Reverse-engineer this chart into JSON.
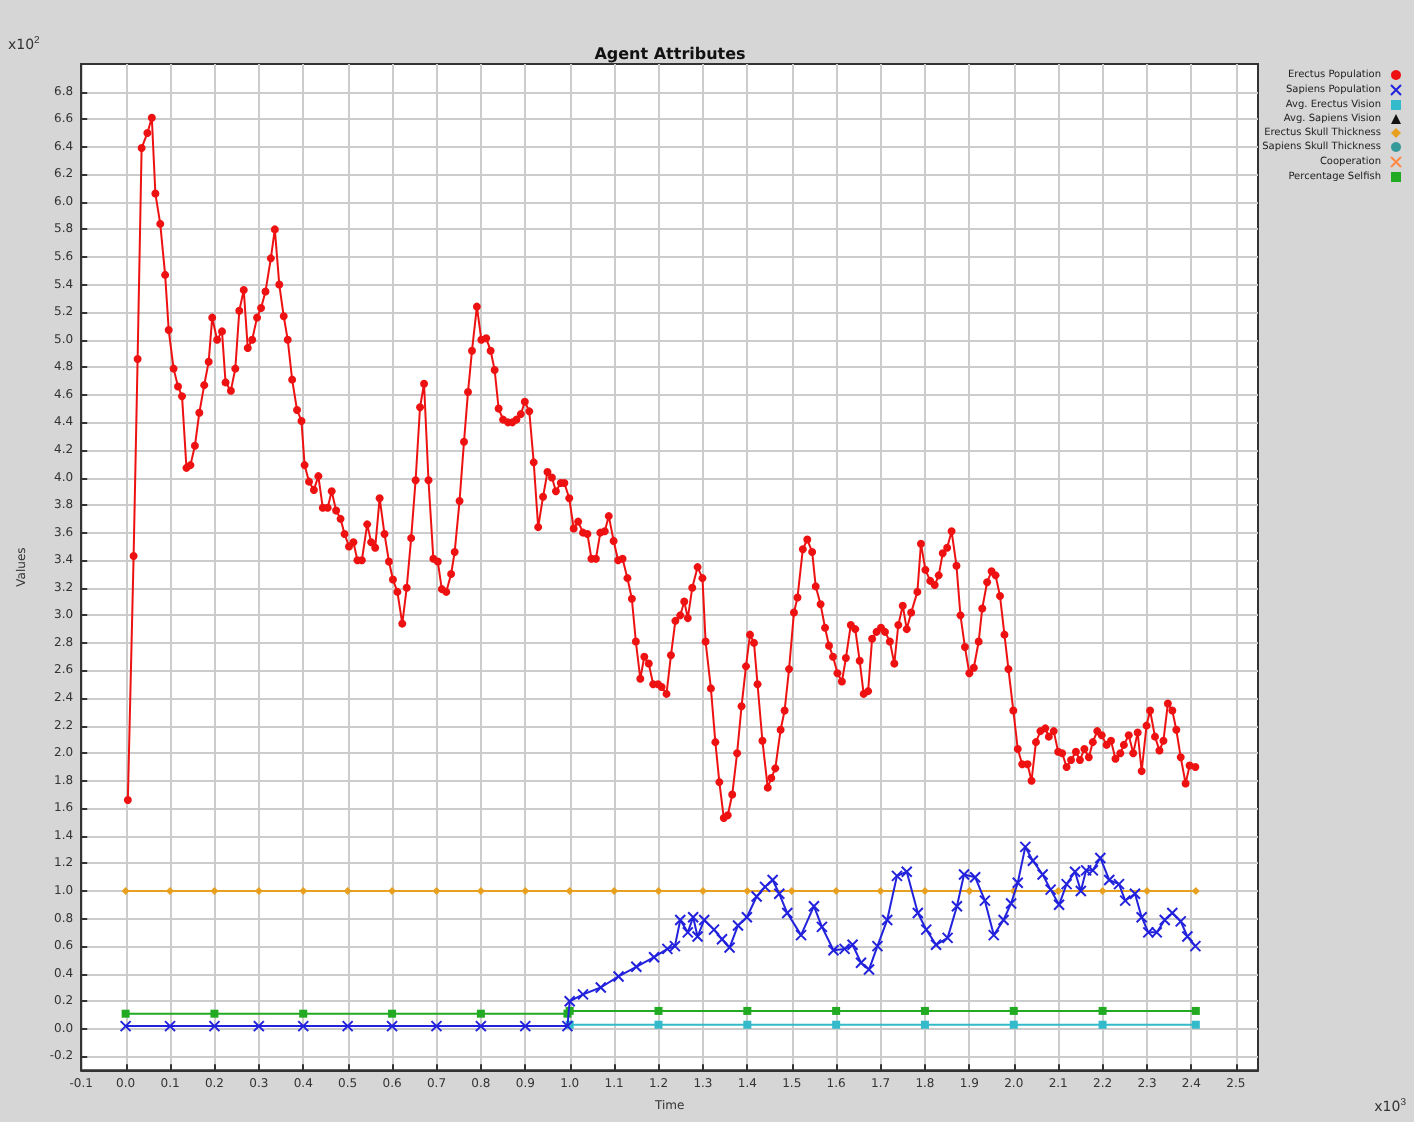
{
  "chart_data": {
    "type": "line",
    "title": "Agent Attributes",
    "xlabel": "Time",
    "ylabel": "Values",
    "annotations": [
      "x10$^{2}$",
      "x10$^{3}$"
    ],
    "xlim": [
      -0.1,
      2.55
    ],
    "xticks": [
      -0.1,
      {
        "value": 0,
        "label": "0.0"
      },
      0.1,
      0.2,
      0.3,
      0.4,
      0.5,
      0.6,
      0.7,
      0.8,
      0.9,
      {
        "value": 1,
        "label": "1.0"
      },
      1.1,
      1.2,
      1.3,
      1.4,
      1.5,
      1.6,
      1.7,
      1.8,
      1.9,
      {
        "value": 2,
        "label": "2.0"
      },
      2.1,
      2.2,
      2.3,
      2.4,
      2.5
    ],
    "ylim": [
      -0.3,
      7.0
    ],
    "yticks": [
      -0.2,
      {
        "value": 0,
        "label": "0.0"
      },
      0.2,
      0.4,
      0.6,
      0.8,
      {
        "value": 1,
        "label": "1.0"
      },
      1.2,
      1.4,
      1.6,
      1.8,
      {
        "value": 2,
        "label": "2.0"
      },
      2.2,
      2.4,
      2.6,
      2.8,
      {
        "value": 3,
        "label": "3.0"
      },
      3.2,
      3.4,
      3.6,
      3.8,
      {
        "value": 4,
        "label": "4.0"
      },
      4.2,
      4.4,
      4.6,
      4.8,
      {
        "value": 5,
        "label": "5.0"
      },
      5.2,
      5.4,
      5.6,
      5.8,
      {
        "value": 6,
        "label": "6.0"
      },
      6.2,
      6.4,
      6.6,
      6.8
    ],
    "grid": true,
    "legend": "top right",
    "series": [
      {
        "name": "Erectus Population",
        "color": "#ee1111",
        "marker": "circle",
        "x": [
          0.005,
          0.018,
          0.027,
          0.036,
          0.049,
          0.059,
          0.067,
          0.078,
          0.089,
          0.097,
          0.108,
          0.118,
          0.127,
          0.137,
          0.146,
          0.156,
          0.166,
          0.177,
          0.187,
          0.195,
          0.206,
          0.217,
          0.225,
          0.237,
          0.247,
          0.256,
          0.266,
          0.275,
          0.285,
          0.296,
          0.305,
          0.315,
          0.327,
          0.336,
          0.346,
          0.356,
          0.365,
          0.375,
          0.386,
          0.396,
          0.403,
          0.413,
          0.424,
          0.434,
          0.444,
          0.455,
          0.464,
          0.474,
          0.484,
          0.493,
          0.503,
          0.513,
          0.522,
          0.532,
          0.544,
          0.553,
          0.562,
          0.572,
          0.583,
          0.593,
          0.602,
          0.612,
          0.623,
          0.633,
          0.643,
          0.653,
          0.663,
          0.672,
          0.682,
          0.693,
          0.703,
          0.712,
          0.722,
          0.733,
          0.741,
          0.752,
          0.762,
          0.771,
          0.78,
          0.791,
          0.801,
          0.812,
          0.822,
          0.831,
          0.84,
          0.85,
          0.861,
          0.871,
          0.88,
          0.89,
          0.899,
          0.909,
          0.919,
          0.929,
          0.94,
          0.95,
          0.96,
          0.969,
          0.98,
          0.988,
          0.999,
          1.009,
          1.019,
          1.03,
          1.04,
          1.049,
          1.059,
          1.069,
          1.079,
          1.088,
          1.099,
          1.109,
          1.119,
          1.13,
          1.14,
          1.149,
          1.159,
          1.168,
          1.178,
          1.188,
          1.199,
          1.207,
          1.218,
          1.228,
          1.238,
          1.249,
          1.258,
          1.266,
          1.276,
          1.288,
          1.299,
          1.306,
          1.318,
          1.328,
          1.337,
          1.347,
          1.356,
          1.366,
          1.377,
          1.387,
          1.397,
          1.406,
          1.415,
          1.423,
          1.434,
          1.446,
          1.454,
          1.463,
          1.475,
          1.484,
          1.494,
          1.505,
          1.513,
          1.525,
          1.535,
          1.546,
          1.554,
          1.565,
          1.575,
          1.584,
          1.593,
          1.603,
          1.613,
          1.622,
          1.633,
          1.643,
          1.653,
          1.662,
          1.672,
          1.681,
          1.691,
          1.701,
          1.71,
          1.721,
          1.731,
          1.74,
          1.75,
          1.759,
          1.769,
          1.783,
          1.791,
          1.801,
          1.812,
          1.822,
          1.831,
          1.84,
          1.85,
          1.86,
          1.871,
          1.88,
          1.89,
          1.9,
          1.91,
          1.921,
          1.929,
          1.94,
          1.95,
          1.959,
          1.969,
          1.979,
          1.988,
          1.999,
          2.009,
          2.019,
          2.031,
          2.04,
          2.05,
          2.06,
          2.071,
          2.079,
          2.09,
          2.1,
          2.109,
          2.119,
          2.129,
          2.14,
          2.149,
          2.159,
          2.169,
          2.178,
          2.188,
          2.198,
          2.209,
          2.219,
          2.229,
          2.24,
          2.248,
          2.259,
          2.269,
          2.279,
          2.288,
          2.299,
          2.307,
          2.318,
          2.328,
          2.337,
          2.347,
          2.357,
          2.366,
          2.376,
          2.387,
          2.396,
          2.409
        ],
        "values": [
          1.66,
          3.43,
          4.86,
          6.39,
          6.5,
          6.61,
          6.06,
          5.84,
          5.47,
          5.07,
          4.79,
          4.66,
          4.59,
          4.07,
          4.09,
          4.23,
          4.47,
          4.67,
          4.84,
          5.16,
          5.0,
          5.06,
          4.69,
          4.63,
          4.79,
          5.21,
          5.36,
          4.94,
          5.0,
          5.16,
          5.23,
          5.35,
          5.59,
          5.8,
          5.4,
          5.17,
          5.0,
          4.71,
          4.49,
          4.41,
          4.09,
          3.97,
          3.91,
          4.01,
          3.78,
          3.78,
          3.9,
          3.76,
          3.7,
          3.59,
          3.5,
          3.53,
          3.4,
          3.4,
          3.66,
          3.53,
          3.49,
          3.85,
          3.59,
          3.39,
          3.26,
          3.17,
          2.94,
          3.2,
          3.56,
          3.98,
          4.51,
          4.68,
          3.98,
          3.41,
          3.39,
          3.19,
          3.17,
          3.3,
          3.46,
          3.83,
          4.26,
          4.62,
          4.92,
          5.24,
          5.0,
          5.01,
          4.92,
          4.78,
          4.5,
          4.42,
          4.4,
          4.4,
          4.42,
          4.46,
          4.55,
          4.48,
          4.11,
          3.64,
          3.86,
          4.04,
          4.0,
          3.9,
          3.96,
          3.96,
          3.85,
          3.63,
          3.68,
          3.6,
          3.59,
          3.41,
          3.41,
          3.6,
          3.61,
          3.72,
          3.54,
          3.4,
          3.41,
          3.27,
          3.12,
          2.81,
          2.54,
          2.7,
          2.65,
          2.5,
          2.5,
          2.48,
          2.43,
          2.71,
          2.96,
          3.0,
          3.1,
          2.98,
          3.2,
          3.35,
          3.27,
          2.81,
          2.47,
          2.08,
          1.79,
          1.53,
          1.55,
          1.7,
          2.0,
          2.34,
          2.63,
          2.86,
          2.8,
          2.5,
          2.09,
          1.75,
          1.82,
          1.89,
          2.17,
          2.31,
          2.61,
          3.02,
          3.13,
          3.48,
          3.55,
          3.46,
          3.21,
          3.08,
          2.91,
          2.78,
          2.7,
          2.58,
          2.52,
          2.69,
          2.93,
          2.9,
          2.67,
          2.43,
          2.45,
          2.83,
          2.88,
          2.91,
          2.88,
          2.81,
          2.65,
          2.93,
          3.07,
          2.9,
          3.02,
          3.17,
          3.52,
          3.33,
          3.25,
          3.22,
          3.29,
          3.45,
          3.49,
          3.61,
          3.36,
          3.0,
          2.77,
          2.58,
          2.62,
          2.81,
          3.05,
          3.24,
          3.32,
          3.29,
          3.14,
          2.86,
          2.61,
          2.31,
          2.03,
          1.92,
          1.92,
          1.8,
          2.08,
          2.16,
          2.18,
          2.12,
          2.16,
          2.01,
          2.0,
          1.9,
          1.95,
          2.01,
          1.95,
          2.03,
          1.97,
          2.08,
          2.16,
          2.13,
          2.06,
          2.09,
          1.96,
          2.0,
          2.06,
          2.13,
          2.0,
          2.15,
          1.87,
          2.2,
          2.31,
          2.12,
          2.02,
          2.09,
          2.36,
          2.31,
          2.17,
          1.97,
          1.78,
          1.91,
          1.9
        ]
      },
      {
        "name": "Sapiens Population",
        "color": "#2222dd",
        "marker": "cross",
        "x": [
          0,
          0.1,
          0.2,
          0.3,
          0.4,
          0.5,
          0.6,
          0.7,
          0.8,
          0.9,
          0.995,
          1.0,
          1.03,
          1.07,
          1.11,
          1.15,
          1.19,
          1.22,
          1.237,
          1.249,
          1.266,
          1.278,
          1.288,
          1.303,
          1.325,
          1.343,
          1.36,
          1.379,
          1.399,
          1.421,
          1.44,
          1.457,
          1.472,
          1.49,
          1.521,
          1.55,
          1.568,
          1.594,
          1.619,
          1.637,
          1.656,
          1.674,
          1.693,
          1.715,
          1.737,
          1.759,
          1.784,
          1.803,
          1.825,
          1.851,
          1.872,
          1.888,
          1.913,
          1.935,
          1.955,
          1.977,
          1.994,
          2.009,
          2.026,
          2.043,
          2.065,
          2.083,
          2.102,
          2.119,
          2.138,
          2.151,
          2.163,
          2.178,
          2.195,
          2.215,
          2.237,
          2.251,
          2.273,
          2.288,
          2.303,
          2.322,
          2.34,
          2.357,
          2.376,
          2.391,
          2.409
        ],
        "values": [
          0.02,
          0.02,
          0.02,
          0.02,
          0.02,
          0.02,
          0.02,
          0.02,
          0.02,
          0.02,
          0.02,
          0.2,
          0.25,
          0.3,
          0.38,
          0.45,
          0.52,
          0.58,
          0.6,
          0.79,
          0.7,
          0.81,
          0.67,
          0.79,
          0.72,
          0.65,
          0.59,
          0.75,
          0.81,
          0.96,
          1.03,
          1.08,
          0.98,
          0.84,
          0.68,
          0.89,
          0.74,
          0.57,
          0.58,
          0.61,
          0.48,
          0.43,
          0.6,
          0.79,
          1.11,
          1.14,
          0.84,
          0.72,
          0.61,
          0.66,
          0.89,
          1.12,
          1.1,
          0.93,
          0.68,
          0.79,
          0.91,
          1.06,
          1.32,
          1.22,
          1.12,
          1.01,
          0.9,
          1.05,
          1.14,
          1.0,
          1.15,
          1.15,
          1.24,
          1.08,
          1.05,
          0.93,
          0.98,
          0.81,
          0.7,
          0.7,
          0.79,
          0.84,
          0.78,
          0.67,
          0.6
        ]
      },
      {
        "name": "Avg. Erectus Vision",
        "color": "#33bbcc",
        "marker": "square",
        "x": [
          1.0,
          1.2,
          1.4,
          1.6,
          1.8,
          2.0,
          2.2,
          2.41
        ],
        "values": [
          0.03,
          0.03,
          0.03,
          0.03,
          0.03,
          0.03,
          0.03,
          0.03
        ]
      },
      {
        "name": "Avg. Sapiens Vision",
        "color": "#111111",
        "marker": "triangle"
      },
      {
        "name": "Erectus Skull Thickness",
        "color": "#e8a020",
        "marker": "diamond",
        "x": [
          0,
          0.1,
          0.2,
          0.3,
          0.4,
          0.5,
          0.6,
          0.7,
          0.8,
          0.9,
          1.0,
          1.1,
          1.2,
          1.3,
          1.4,
          1.5,
          1.6,
          1.7,
          1.8,
          1.9,
          2.0,
          2.1,
          2.2,
          2.3,
          2.41
        ],
        "values": [
          1,
          1,
          1,
          1,
          1,
          1,
          1,
          1,
          1,
          1,
          1,
          1,
          1,
          1,
          1,
          1,
          1,
          1,
          1,
          1,
          1,
          1,
          1,
          1,
          1
        ]
      },
      {
        "name": "Sapiens Skull Thickness",
        "color": "#339999",
        "marker": "circle"
      },
      {
        "name": "Cooperation",
        "color": "#ff8844",
        "marker": "cross"
      },
      {
        "name": "Percentage Selfish",
        "color": "#22aa22",
        "marker": "square",
        "x": [
          0,
          0.2,
          0.4,
          0.6,
          0.8,
          0.995,
          1.0,
          1.2,
          1.4,
          1.6,
          1.8,
          2.0,
          2.2,
          2.41
        ],
        "values": [
          0.11,
          0.11,
          0.11,
          0.11,
          0.11,
          0.11,
          0.13,
          0.13,
          0.13,
          0.13,
          0.13,
          0.13,
          0.13,
          0.13
        ]
      }
    ]
  }
}
